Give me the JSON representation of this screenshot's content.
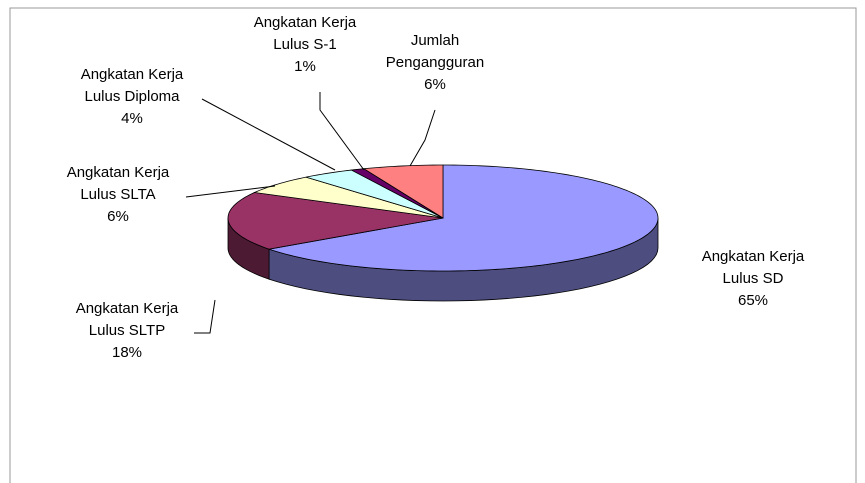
{
  "chart_data": {
    "type": "pie",
    "categories": [
      "Angkatan Kerja\nLulus SD",
      "Angkatan Kerja\nLulus SLTP",
      "Angkatan Kerja\nLulus SLTA",
      "Angkatan Kerja\nLulus Diploma",
      "Angkatan Kerja\nLulus S-1",
      "Jumlah\nPengangguran"
    ],
    "values": [
      65,
      18,
      6,
      4,
      1,
      6
    ],
    "value_labels": [
      "65%",
      "18%",
      "6%",
      "4%",
      "1%",
      "6%"
    ],
    "colors": [
      "#9999ff",
      "#993366",
      "#ffffcc",
      "#ccffff",
      "#660066",
      "#ff8080"
    ]
  }
}
